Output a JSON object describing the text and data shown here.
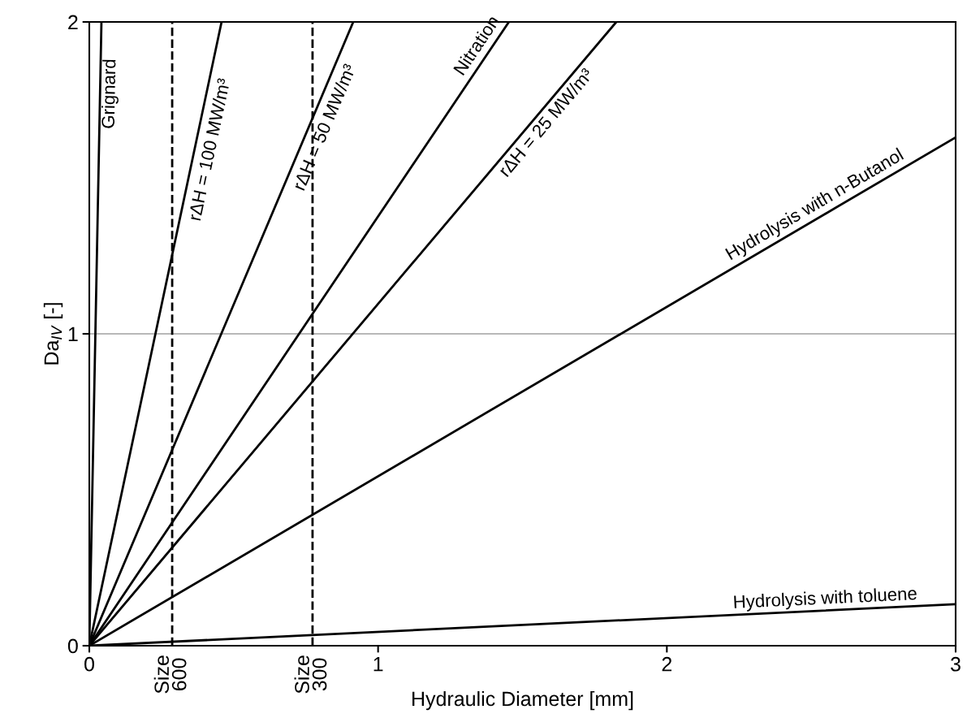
{
  "chart_data": {
    "type": "line",
    "xlabel": "Hydraulic Diameter [mm]",
    "ylabel": "Da$_{IV}$ [-]",
    "xlim": [
      0,
      3
    ],
    "ylim": [
      0,
      2
    ],
    "xticks": [
      0,
      1,
      2,
      3
    ],
    "yticks": [
      0,
      1,
      2
    ],
    "line_style": "solid",
    "marker": "none",
    "series": [
      {
        "name": "Grignard",
        "color": "#000000",
        "x": [
          0,
          0.042
        ],
        "values": [
          0,
          2
        ]
      },
      {
        "name": "rΔH = 100 MW/m³",
        "color": "#000000",
        "x": [
          0,
          0.458
        ],
        "values": [
          0,
          2
        ]
      },
      {
        "name": "rΔH = 50 MW/m³",
        "color": "#000000",
        "x": [
          0,
          0.914
        ],
        "values": [
          0,
          2
        ]
      },
      {
        "name": "Nitration",
        "color": "#000000",
        "x": [
          0,
          1.453
        ],
        "values": [
          0,
          2
        ]
      },
      {
        "name": "rΔH = 25 MW/m³",
        "color": "#000000",
        "x": [
          0,
          1.825
        ],
        "values": [
          0,
          2
        ]
      },
      {
        "name": "Hydrolysis with n-Butanol",
        "color": "#000000",
        "x": [
          0,
          3
        ],
        "values": [
          0,
          1.63
        ]
      },
      {
        "name": "Hydrolysis with toluene",
        "color": "#000000",
        "x": [
          0,
          3
        ],
        "values": [
          0,
          0.133
        ]
      }
    ],
    "ref_lines": [
      {
        "axis": "x",
        "value": 0.287,
        "label": "Size\n600",
        "line_style": "dashed",
        "color": "#000000"
      },
      {
        "axis": "x",
        "value": 0.773,
        "label": "Size\n300",
        "line_style": "dashed",
        "color": "#000000"
      },
      {
        "axis": "y",
        "value": 1,
        "line_style": "solid",
        "color": "#a0a0a0"
      }
    ]
  }
}
